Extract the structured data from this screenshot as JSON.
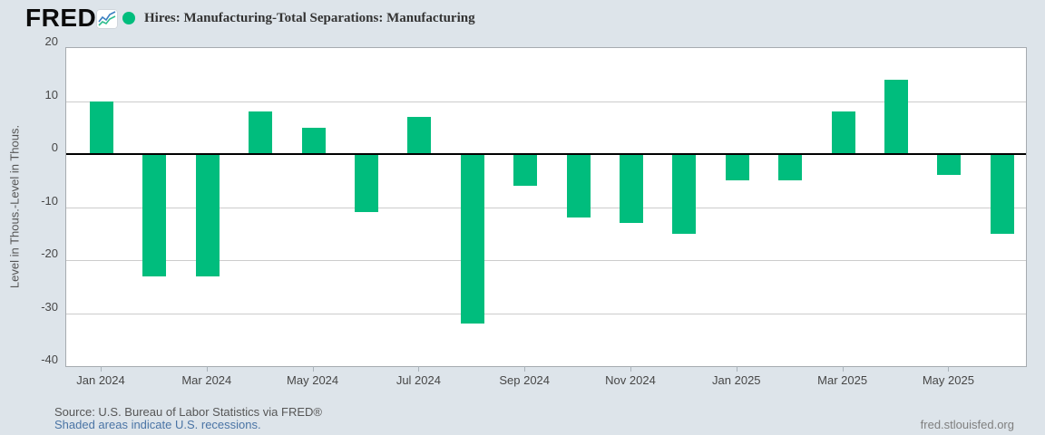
{
  "header": {
    "logo_text": "FRED",
    "logo_reg": "®",
    "legend": {
      "marker_color": "#00bd7d",
      "label": "Hires: Manufacturing-Total Separations: Manufacturing"
    }
  },
  "chart_data": {
    "type": "bar",
    "title": "Hires: Manufacturing-Total Separations: Manufacturing",
    "categories": [
      "Jan 2024",
      "Feb 2024",
      "Mar 2024",
      "Apr 2024",
      "May 2024",
      "Jun 2024",
      "Jul 2024",
      "Aug 2024",
      "Sep 2024",
      "Oct 2024",
      "Nov 2024",
      "Dec 2024",
      "Jan 2025",
      "Feb 2025",
      "Mar 2025",
      "Apr 2025",
      "May 2025",
      "Jun 2025"
    ],
    "values": [
      10,
      -23,
      -23,
      8,
      5,
      -11,
      7,
      -32,
      -6,
      -12,
      -13,
      -15,
      -5,
      -5,
      8,
      14,
      -4,
      -15
    ],
    "series_color": "#00bd7d",
    "xlabel": "",
    "ylabel": "Level in Thous.-Level in Thous.",
    "ylim": [
      -40,
      20
    ],
    "yticks": [
      20,
      10,
      0,
      -10,
      -20,
      -30,
      -40
    ],
    "xtick_labels": [
      "Jan 2024",
      "Mar 2024",
      "May 2024",
      "Jul 2024",
      "Sep 2024",
      "Nov 2024",
      "Jan 2025",
      "Mar 2025",
      "May 2025"
    ],
    "grid": true,
    "zero_line": true,
    "legend_position": "top-left",
    "plot_background": "#ffffff",
    "page_background": "#dde4ea"
  },
  "footer": {
    "source": "Source: U.S. Bureau of Labor Statistics via FRED®",
    "recession_note": "Shaded areas indicate U.S. recessions.",
    "site": "fred.stlouisfed.org"
  },
  "colors": {
    "bar": "#00bd7d",
    "gridline": "#cccccc",
    "plot_border": "#a6abb0",
    "zero_line": "#000000",
    "link": "#4a74a5",
    "tick_text": "#474747",
    "source_text": "#565656",
    "site_text": "#7f7f7f"
  }
}
